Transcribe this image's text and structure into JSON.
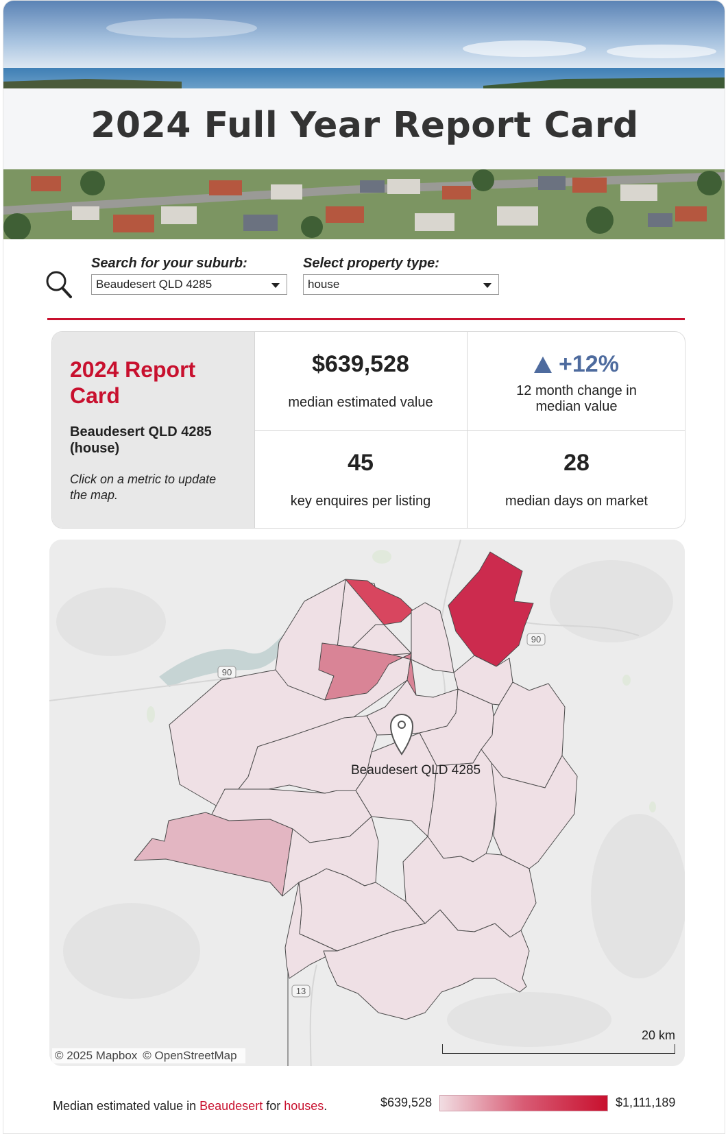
{
  "banner": {
    "title": "2024 Full Year Report Card"
  },
  "search": {
    "suburb_label": "Search for your suburb:",
    "suburb_value": "Beaudesert QLD 4285",
    "property_label": "Select property type:",
    "property_value": "house"
  },
  "report_card": {
    "title": "2024 Report Card",
    "subtitle": "Beaudesert QLD 4285 (house)",
    "note": "Click on a metric to update the map."
  },
  "metrics": [
    {
      "value": "$639,528",
      "label": "median estimated value"
    },
    {
      "value": "+12%",
      "label": "12 month change in median value",
      "direction": "up",
      "color": "#4e6b9e"
    },
    {
      "value": "45",
      "label": "key enquires per listing"
    },
    {
      "value": "28",
      "label": "median days on market"
    }
  ],
  "map": {
    "pin_label": "Beaudesert QLD 4285",
    "road_labels": [
      "90",
      "90",
      "13"
    ],
    "attribution": [
      "© 2025 Mapbox",
      "© OpenStreetMap"
    ],
    "scale_label": "20 km",
    "colors": {
      "low": "#f1dde2",
      "high": "#c8102e"
    }
  },
  "legend": {
    "prefix": "Median estimated value in ",
    "suburb": "Beaudesert",
    "middle": " for ",
    "property": "houses",
    "suffix": ".",
    "min": "$639,528",
    "max": "$1,111,189"
  }
}
